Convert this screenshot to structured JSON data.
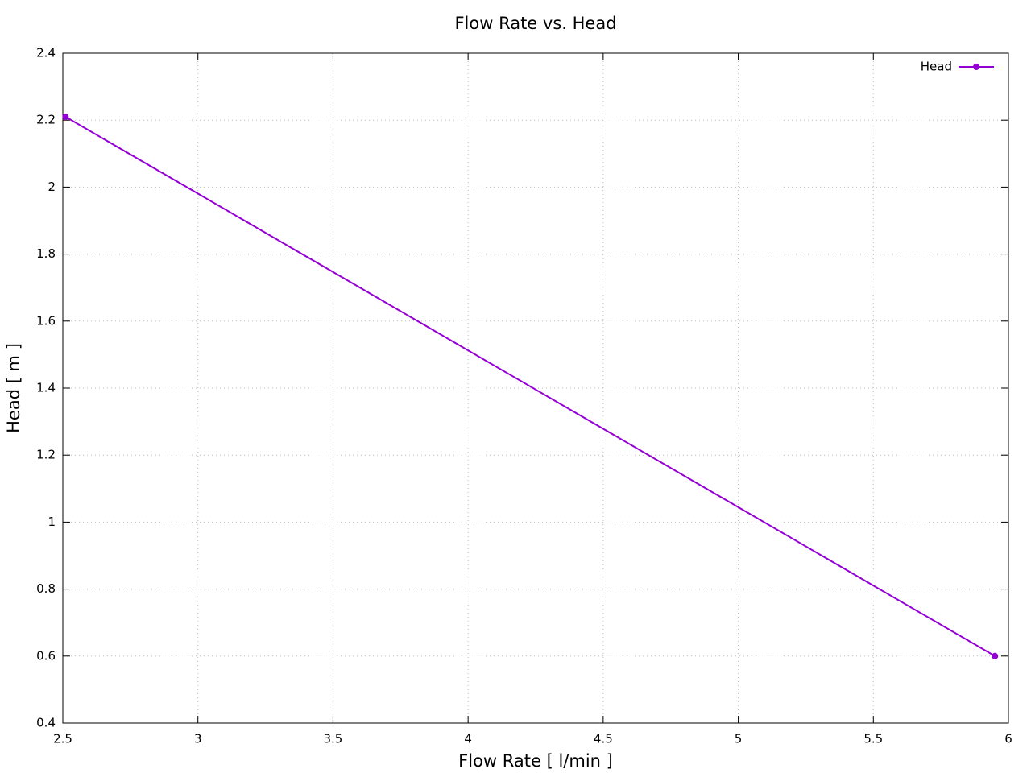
{
  "chart_data": {
    "type": "line",
    "title": "Flow Rate vs. Head",
    "x_label": "Flow Rate [ l/min ]",
    "y_label": "Head [ m ]",
    "x": [
      2.51,
      5.95
    ],
    "series": [
      {
        "name": "Head",
        "color": "#9400d3",
        "values": [
          2.21,
          0.6
        ]
      }
    ],
    "xlim": [
      2.5,
      6
    ],
    "xticks": [
      2.5,
      3,
      3.5,
      4,
      4.5,
      5,
      5.5,
      6
    ],
    "ylim": [
      0.4,
      2.4
    ],
    "yticks": [
      0.4,
      0.6,
      0.8,
      1,
      1.2,
      1.4,
      1.6,
      1.8,
      2,
      2.2,
      2.4
    ],
    "grid": true,
    "legend": "top-right"
  }
}
